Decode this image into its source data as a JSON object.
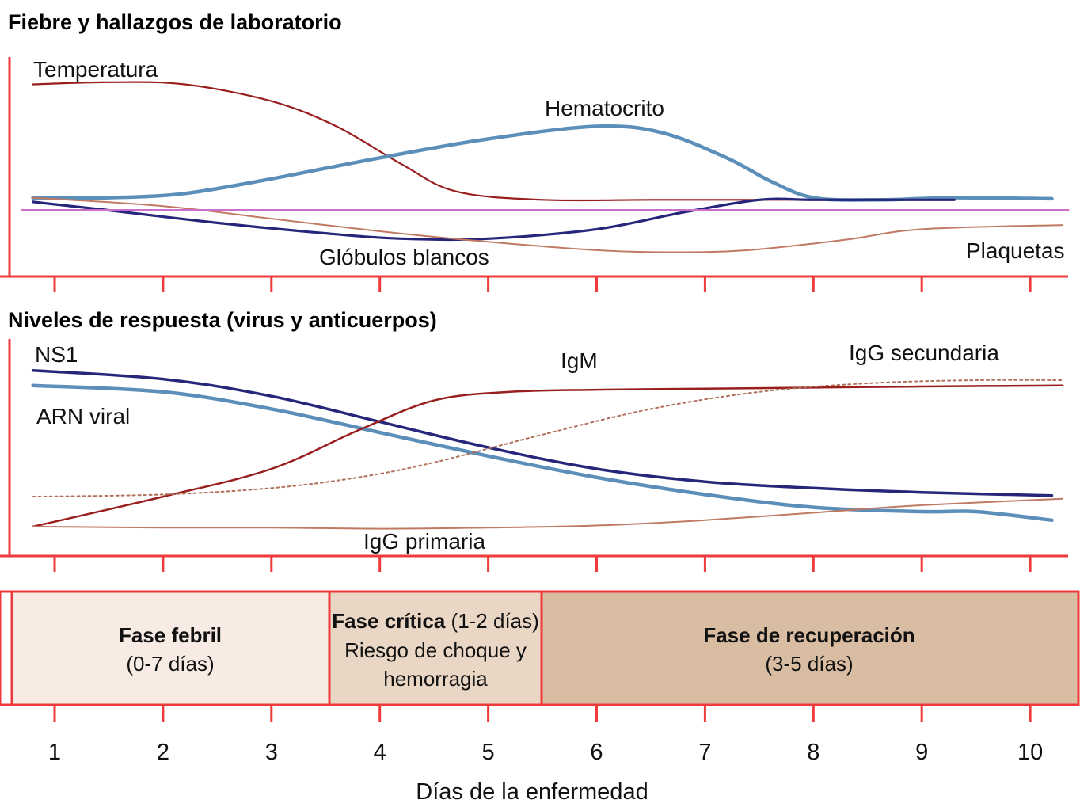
{
  "colors": {
    "axis": "#ee3a3a",
    "temperature": "#991e1e",
    "hematocrit": "#5b8fb9",
    "wbc": "#26267a",
    "platelets": "#c07a63",
    "baseline": "#cc6ecc",
    "ns1": "#26267a",
    "rna": "#5b8fb9",
    "igm": "#991e1e",
    "igg_primary": "#c07a63",
    "igg_secondary": "#b0705a",
    "phase_febrile": "#f7ebe4",
    "phase_critical": "#ead6c4",
    "phase_recovery": "#d8bda3"
  },
  "chart_data": [
    {
      "type": "line",
      "title": "Fiebre y hallazgos de laboratorio",
      "x_ticks": [
        1,
        2,
        3,
        4,
        5,
        6,
        7,
        8,
        9,
        10
      ],
      "series": [
        {
          "name": "Temperatura",
          "key": "temperature",
          "width": 2.2,
          "x": [
            0.8,
            1.5,
            2.2,
            3.0,
            3.6,
            4.2,
            4.7,
            5.5,
            6.5,
            7.5,
            8.5
          ],
          "y": [
            0.9,
            0.91,
            0.9,
            0.82,
            0.7,
            0.52,
            0.39,
            0.35,
            0.35,
            0.35,
            0.35
          ]
        },
        {
          "name": "Hematocrito",
          "key": "hematocrit",
          "width": 4.5,
          "x": [
            0.8,
            1.5,
            2.2,
            3.0,
            4.0,
            5.0,
            6.0,
            6.6,
            7.2,
            7.6,
            8.0,
            8.6,
            9.3,
            10.2
          ],
          "y": [
            0.36,
            0.36,
            0.38,
            0.45,
            0.55,
            0.64,
            0.7,
            0.67,
            0.55,
            0.44,
            0.36,
            0.35,
            0.36,
            0.355
          ]
        },
        {
          "name": "Glóbulos blancos",
          "key": "wbc",
          "width": 3.2,
          "x": [
            0.8,
            1.5,
            2.5,
            3.5,
            4.2,
            5.0,
            6.0,
            6.8,
            7.5,
            8.0,
            8.8,
            9.3
          ],
          "y": [
            0.34,
            0.3,
            0.24,
            0.19,
            0.165,
            0.165,
            0.21,
            0.29,
            0.35,
            0.35,
            0.35,
            0.35
          ]
        },
        {
          "name": "Plaquetas",
          "key": "platelets",
          "width": 2.0,
          "x": [
            0.8,
            2.0,
            3.0,
            4.0,
            5.0,
            6.0,
            6.7,
            7.4,
            8.3,
            9.0,
            10.3
          ],
          "y": [
            0.36,
            0.32,
            0.26,
            0.2,
            0.15,
            0.11,
            0.1,
            0.11,
            0.16,
            0.21,
            0.23
          ]
        },
        {
          "name": "",
          "key": "baseline",
          "width": 3.0,
          "x": [
            0.7,
            10.35
          ],
          "y": [
            0.3,
            0.3
          ]
        }
      ]
    },
    {
      "type": "line",
      "title": "Niveles de respuesta (virus y anticuerpos)",
      "x_ticks": [
        1,
        2,
        3,
        4,
        5,
        6,
        7,
        8,
        9,
        10
      ],
      "series": [
        {
          "name": "NS1",
          "key": "ns1",
          "width": 3.5,
          "x": [
            0.8,
            2.0,
            3.0,
            4.0,
            5.0,
            6.0,
            7.0,
            8.0,
            9.0,
            10.2
          ],
          "y": [
            0.86,
            0.82,
            0.74,
            0.62,
            0.5,
            0.4,
            0.34,
            0.31,
            0.29,
            0.275
          ]
        },
        {
          "name": "ARN viral",
          "key": "rna",
          "width": 4.5,
          "x": [
            0.8,
            2.0,
            3.0,
            4.0,
            5.0,
            6.0,
            7.0,
            8.0,
            9.0,
            9.5,
            10.2
          ],
          "y": [
            0.79,
            0.76,
            0.68,
            0.57,
            0.46,
            0.36,
            0.28,
            0.22,
            0.2,
            0.2,
            0.16
          ]
        },
        {
          "name": "IgM",
          "key": "igm",
          "width": 2.5,
          "x": [
            0.8,
            2.0,
            3.0,
            3.8,
            4.5,
            5.2,
            6.0,
            7.0,
            8.0,
            9.0,
            10.3
          ],
          "y": [
            0.13,
            0.27,
            0.4,
            0.58,
            0.72,
            0.76,
            0.77,
            0.775,
            0.78,
            0.785,
            0.79
          ]
        },
        {
          "name": "IgG primaria",
          "key": "igg_primary",
          "width": 2.0,
          "x": [
            0.8,
            2.0,
            3.0,
            4.0,
            5.0,
            6.0,
            7.0,
            8.0,
            9.0,
            10.3
          ],
          "y": [
            0.13,
            0.125,
            0.125,
            0.12,
            0.125,
            0.135,
            0.16,
            0.195,
            0.23,
            0.26
          ]
        },
        {
          "name": "IgG secundaria",
          "key": "igg_secondary",
          "width": 2.0,
          "dashed": true,
          "x": [
            0.8,
            2.0,
            3.0,
            3.8,
            4.5,
            5.5,
            6.5,
            7.5,
            8.5,
            9.5,
            10.3
          ],
          "y": [
            0.27,
            0.28,
            0.31,
            0.36,
            0.43,
            0.56,
            0.68,
            0.76,
            0.8,
            0.815,
            0.815
          ]
        }
      ]
    }
  ],
  "panel1": {
    "title": "Fiebre y hallazgos de laboratorio",
    "labels": {
      "temperature": "Temperatura",
      "hematocrit": "Hematocrito",
      "wbc": "Glóbulos blancos",
      "platelets": "Plaquetas"
    }
  },
  "panel2": {
    "title": "Niveles de respuesta (virus y anticuerpos)",
    "labels": {
      "ns1": "NS1",
      "rna": "ARN viral",
      "igm": "IgM",
      "igg_secondary": "IgG secundaria",
      "igg_primary": "IgG primaria"
    }
  },
  "phases": {
    "febrile": {
      "name": "Fase febril",
      "duration": "(0-7 días)"
    },
    "critical": {
      "name": "Fase crítica",
      "duration": "(1-2 días)",
      "line2": "Riesgo de choque y",
      "line3": "hemorragia"
    },
    "recovery": {
      "name": "Fase de recuperación",
      "duration": "(3-5 días)"
    }
  },
  "x_axis": {
    "ticks": [
      "1",
      "2",
      "3",
      "4",
      "5",
      "6",
      "7",
      "8",
      "9",
      "10"
    ],
    "label": "Días de la enfermedad"
  }
}
